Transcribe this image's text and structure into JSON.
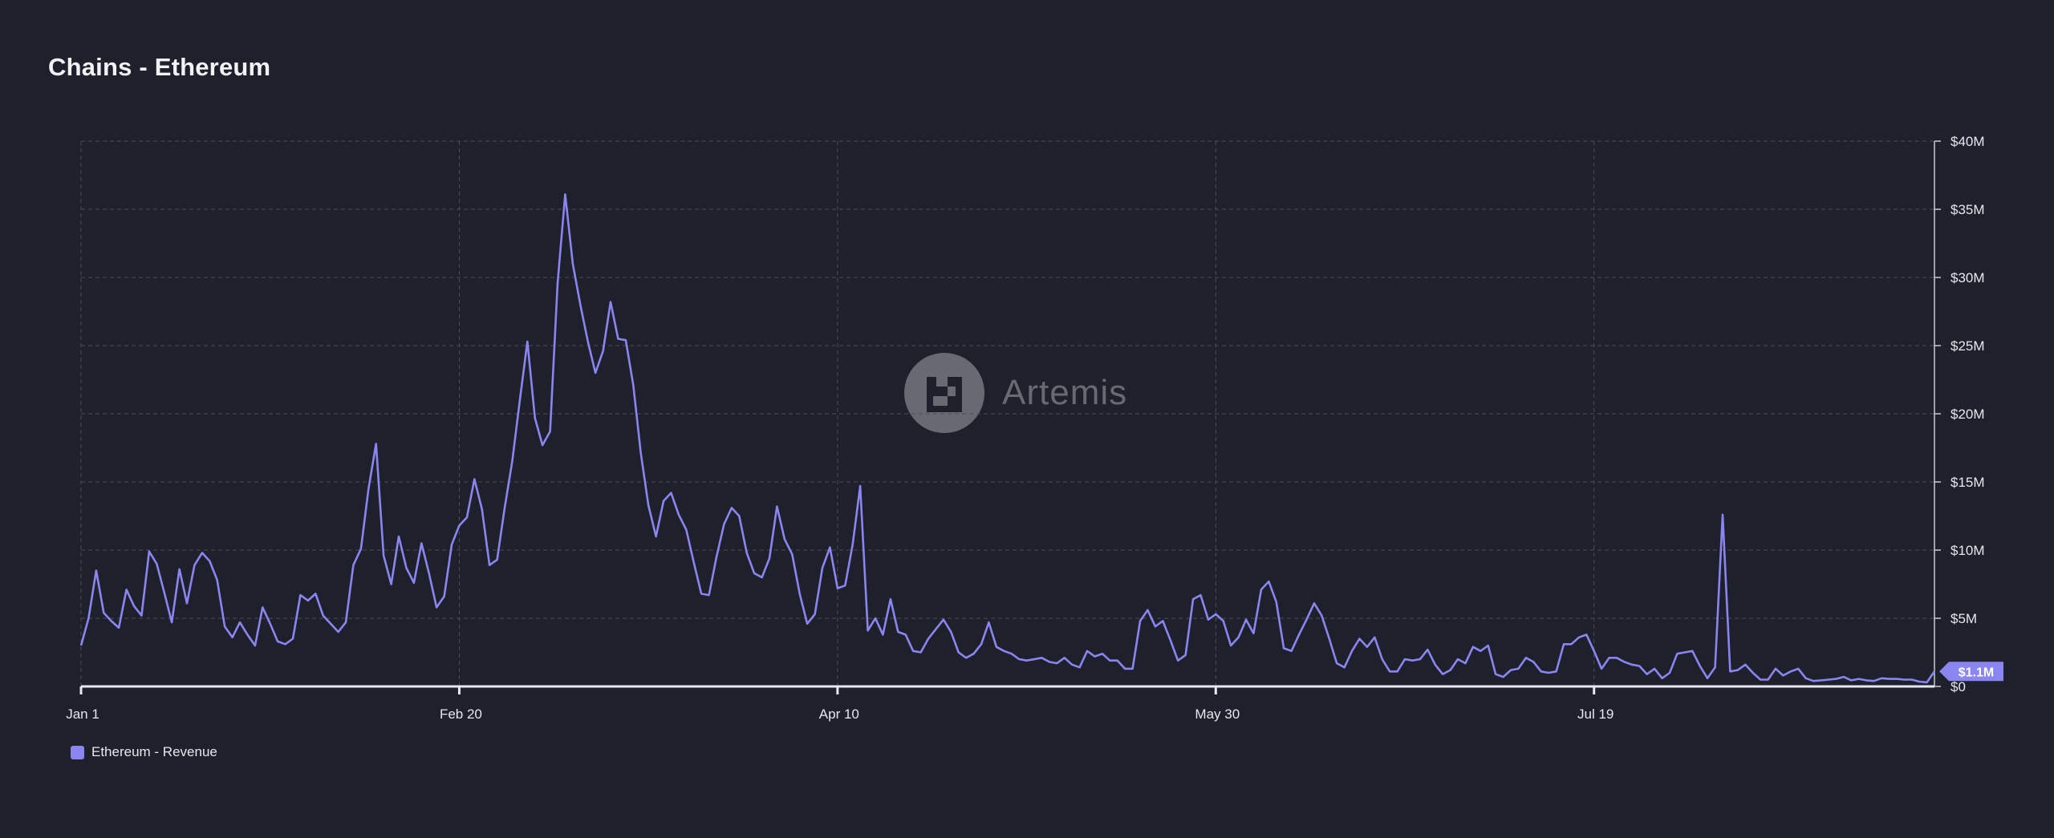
{
  "title": "Chains - Ethereum",
  "watermark": {
    "text": "Artemis",
    "icon": "artemis-logo-icon"
  },
  "legend": {
    "label": "Ethereum - Revenue"
  },
  "last_value_badge": "$1.1M",
  "colors": {
    "line": "#8b85f0",
    "background": "#1e202b",
    "grid": "#4a4d5a",
    "badge": "#8b85f0"
  },
  "chart_data": {
    "type": "line",
    "title": "Chains - Ethereum",
    "xlabel": "",
    "ylabel": "",
    "ylim": [
      0,
      40
    ],
    "y_unit": "$M",
    "y_ticks": [
      "$0",
      "$5M",
      "$10M",
      "$15M",
      "$20M",
      "$25M",
      "$30M",
      "$35M",
      "$40M"
    ],
    "x_ticks": [
      "Jan 1",
      "Feb 20",
      "Apr 10",
      "May 30",
      "Jul 19"
    ],
    "x_tick_days": [
      0,
      50,
      100,
      150,
      200
    ],
    "x_days_total": 245,
    "grid": true,
    "legend_position": "bottom-left",
    "y_axis_side": "right",
    "series": [
      {
        "name": "Ethereum - Revenue",
        "values": [
          3.0,
          5.0,
          8.5,
          5.4,
          4.8,
          4.3,
          7.1,
          5.9,
          5.2,
          9.9,
          9.0,
          6.9,
          4.7,
          8.6,
          6.1,
          8.9,
          9.8,
          9.2,
          7.8,
          4.4,
          3.6,
          4.7,
          3.8,
          3.0,
          5.8,
          4.6,
          3.3,
          3.1,
          3.5,
          6.7,
          6.3,
          6.8,
          5.2,
          4.6,
          4.0,
          4.7,
          8.9,
          10.1,
          14.5,
          17.8,
          9.6,
          7.5,
          11.0,
          8.7,
          7.6,
          10.5,
          8.3,
          5.8,
          6.6,
          10.4,
          11.8,
          12.4,
          15.2,
          13.0,
          8.9,
          9.3,
          13.1,
          16.5,
          21.0,
          25.3,
          19.7,
          17.7,
          18.7,
          29.6,
          36.1,
          31.0,
          28.0,
          25.3,
          23.0,
          24.6,
          28.2,
          25.5,
          25.4,
          22.1,
          17.1,
          13.3,
          11.0,
          13.6,
          14.2,
          12.6,
          11.5,
          9.1,
          6.8,
          6.7,
          9.5,
          11.9,
          13.1,
          12.5,
          9.8,
          8.3,
          8.0,
          9.4,
          13.2,
          10.8,
          9.7,
          6.8,
          4.6,
          5.3,
          8.7,
          10.2,
          7.2,
          7.4,
          10.4,
          14.7,
          4.1,
          5.0,
          3.8,
          6.4,
          4.0,
          3.8,
          2.6,
          2.5,
          3.5,
          4.2,
          4.9,
          4.0,
          2.5,
          2.1,
          2.4,
          3.1,
          4.7,
          2.9,
          2.6,
          2.4,
          2.0,
          1.9,
          2.0,
          2.1,
          1.8,
          1.7,
          2.1,
          1.6,
          1.4,
          2.6,
          2.2,
          2.4,
          1.9,
          1.9,
          1.3,
          1.3,
          4.8,
          5.6,
          4.4,
          4.8,
          3.4,
          1.9,
          2.3,
          6.4,
          6.7,
          4.9,
          5.3,
          4.8,
          3.0,
          3.6,
          4.9,
          3.9,
          7.1,
          7.7,
          6.2,
          2.8,
          2.6,
          3.8,
          4.9,
          6.1,
          5.2,
          3.5,
          1.7,
          1.4,
          2.6,
          3.5,
          2.9,
          3.6,
          2.0,
          1.1,
          1.1,
          2.0,
          1.9,
          2.0,
          2.7,
          1.6,
          0.9,
          1.2,
          2.0,
          1.7,
          2.9,
          2.6,
          3.0,
          0.9,
          0.7,
          1.2,
          1.3,
          2.1,
          1.8,
          1.1,
          1.0,
          1.1,
          3.1,
          3.1,
          3.6,
          3.8,
          2.6,
          1.3,
          2.1,
          2.1,
          1.8,
          1.6,
          1.5,
          0.9,
          1.3,
          0.6,
          1.0,
          2.4,
          2.5,
          2.6,
          1.5,
          0.6,
          1.4,
          12.6,
          1.1,
          1.2,
          1.6,
          1.0,
          0.5,
          0.5,
          1.3,
          0.8,
          1.1,
          1.3,
          0.6,
          0.4,
          0.45,
          0.5,
          0.55,
          0.7,
          0.45,
          0.55,
          0.45,
          0.4,
          0.6,
          0.55,
          0.55,
          0.5,
          0.5,
          0.35,
          0.3,
          1.1
        ]
      }
    ]
  }
}
